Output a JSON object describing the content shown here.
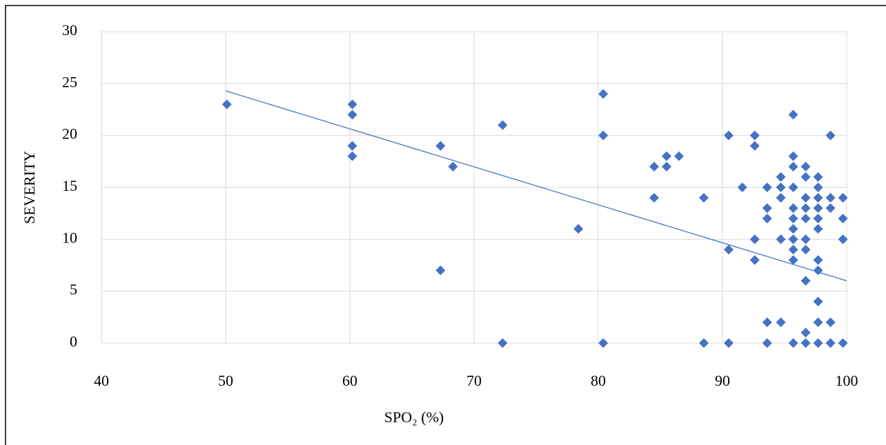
{
  "chart_data": {
    "type": "scatter",
    "x_label": "SPO₂ (%)",
    "y_label": "SEVERITY",
    "xlim": [
      40,
      100
    ],
    "xticks": [
      40,
      50,
      60,
      70,
      80,
      90,
      100
    ],
    "ylim": [
      0,
      30
    ],
    "yticks": [
      0,
      5,
      10,
      15,
      20,
      25,
      30
    ],
    "grid": true,
    "color": "#4472c4",
    "x": [
      50.1,
      60.2,
      60.2,
      60.2,
      60.2,
      67.3,
      67.3,
      68.3,
      72.3,
      72.3,
      78.4,
      80.4,
      80.4,
      80.4,
      84.5,
      84.5,
      85.5,
      85.5,
      86.5,
      88.5,
      88.5,
      90.5,
      90.5,
      90.5,
      91.6,
      92.6,
      92.6,
      92.6,
      92.6,
      93.6,
      93.6,
      93.6,
      93.6,
      93.6,
      94.7,
      94.7,
      94.7,
      94.7,
      94.7,
      95.7,
      95.7,
      95.7,
      95.7,
      95.7,
      95.7,
      95.7,
      95.7,
      95.7,
      95.7,
      95.7,
      96.7,
      96.7,
      96.7,
      96.7,
      96.7,
      96.7,
      96.7,
      96.7,
      96.7,
      96.7,
      97.7,
      97.7,
      97.7,
      97.7,
      97.7,
      97.7,
      97.7,
      97.7,
      97.7,
      97.7,
      97.7,
      98.7,
      98.7,
      98.7,
      98.7,
      98.7,
      99.7,
      99.7,
      99.7,
      99.7
    ],
    "y": [
      23,
      23,
      22,
      19,
      18,
      19,
      7,
      17,
      21,
      0,
      11,
      24,
      20,
      0,
      17,
      14,
      18,
      17,
      18,
      14,
      0,
      20,
      9,
      0,
      15,
      20,
      19,
      10,
      8,
      15,
      13,
      12,
      2,
      0,
      16,
      15,
      14,
      10,
      2,
      22,
      18,
      17,
      15,
      13,
      12,
      11,
      10,
      9,
      8,
      0,
      17,
      16,
      14,
      13,
      12,
      10,
      9,
      6,
      1,
      0,
      16,
      15,
      14,
      13,
      12,
      11,
      8,
      7,
      4,
      2,
      0,
      20,
      14,
      13,
      2,
      0,
      14,
      12,
      10,
      0
    ],
    "trendline": {
      "x": [
        50,
        100
      ],
      "y": [
        24.3,
        6
      ],
      "color": "#5b86c5"
    }
  }
}
